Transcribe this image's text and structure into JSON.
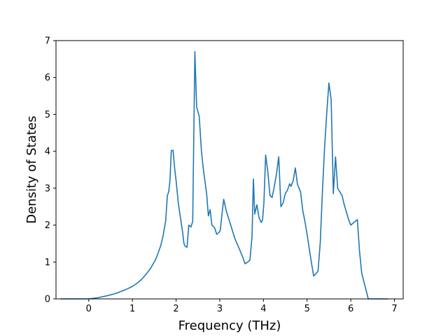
{
  "chart_data": {
    "type": "line",
    "title": "",
    "xlabel": "Frequency (THz)",
    "ylabel": "Density of States",
    "xlim": [
      -0.75,
      7.2
    ],
    "ylim": [
      0,
      7
    ],
    "xticks": [
      0,
      1,
      2,
      3,
      4,
      5,
      6,
      7
    ],
    "yticks": [
      0,
      1,
      2,
      3,
      4,
      5,
      6,
      7
    ],
    "grid": false,
    "legend": "none",
    "line_color": "#1f77b4",
    "series": [
      {
        "x": [
          -0.65,
          -0.3,
          0.0,
          0.2,
          0.4,
          0.6,
          0.8,
          0.9,
          1.0,
          1.1,
          1.2,
          1.3,
          1.4,
          1.5,
          1.55,
          1.6,
          1.65,
          1.7,
          1.73,
          1.76,
          1.8,
          1.83,
          1.86,
          1.89,
          1.93,
          1.97,
          2.0,
          2.05,
          2.1,
          2.15,
          2.18,
          2.21,
          2.25,
          2.29,
          2.34,
          2.38,
          2.43,
          2.47,
          2.53,
          2.58,
          2.62,
          2.66,
          2.7,
          2.74,
          2.78,
          2.82,
          2.88,
          2.93,
          2.98,
          3.01,
          3.05,
          3.09,
          3.15,
          3.25,
          3.35,
          3.45,
          3.52,
          3.58,
          3.64,
          3.69,
          3.74,
          3.77,
          3.8,
          3.85,
          3.9,
          3.95,
          3.98,
          4.01,
          4.05,
          4.1,
          4.15,
          4.2,
          4.25,
          4.3,
          4.35,
          4.4,
          4.45,
          4.5,
          4.55,
          4.6,
          4.63,
          4.68,
          4.73,
          4.78,
          4.85,
          4.9,
          4.95,
          5.0,
          5.05,
          5.1,
          5.15,
          5.2,
          5.25,
          5.3,
          5.35,
          5.4,
          5.45,
          5.5,
          5.55,
          5.6,
          5.65,
          5.7,
          5.75,
          5.8,
          5.85,
          5.9,
          5.95,
          6.0,
          6.05,
          6.1,
          6.15,
          6.2,
          6.25,
          6.4,
          6.6,
          6.85
        ],
        "y": [
          0.0,
          0.0,
          0.0,
          0.03,
          0.08,
          0.14,
          0.23,
          0.28,
          0.34,
          0.42,
          0.52,
          0.65,
          0.8,
          1.0,
          1.12,
          1.28,
          1.45,
          1.7,
          1.9,
          2.1,
          2.8,
          2.9,
          3.2,
          4.02,
          4.03,
          3.5,
          3.2,
          2.6,
          2.2,
          1.8,
          1.5,
          1.42,
          1.4,
          2.0,
          1.95,
          2.1,
          6.7,
          5.2,
          4.95,
          4.0,
          3.55,
          3.2,
          2.85,
          2.25,
          2.42,
          2.0,
          1.93,
          1.75,
          1.8,
          1.85,
          2.3,
          2.7,
          2.38,
          2.0,
          1.62,
          1.35,
          1.15,
          0.95,
          1.0,
          1.05,
          1.7,
          3.25,
          2.3,
          2.55,
          2.2,
          2.07,
          2.15,
          2.6,
          3.9,
          3.45,
          2.8,
          2.75,
          3.05,
          3.4,
          3.85,
          2.5,
          2.6,
          2.85,
          2.95,
          3.12,
          3.05,
          3.2,
          3.55,
          3.1,
          2.9,
          2.4,
          2.1,
          1.75,
          1.35,
          0.97,
          0.62,
          0.68,
          0.75,
          1.52,
          2.9,
          4.1,
          5.05,
          5.85,
          5.4,
          2.85,
          3.85,
          3.0,
          2.9,
          2.8,
          2.55,
          2.35,
          2.15,
          2.0,
          2.05,
          2.1,
          2.15,
          1.3,
          0.7,
          0.0,
          0.0,
          0.0
        ]
      }
    ]
  }
}
